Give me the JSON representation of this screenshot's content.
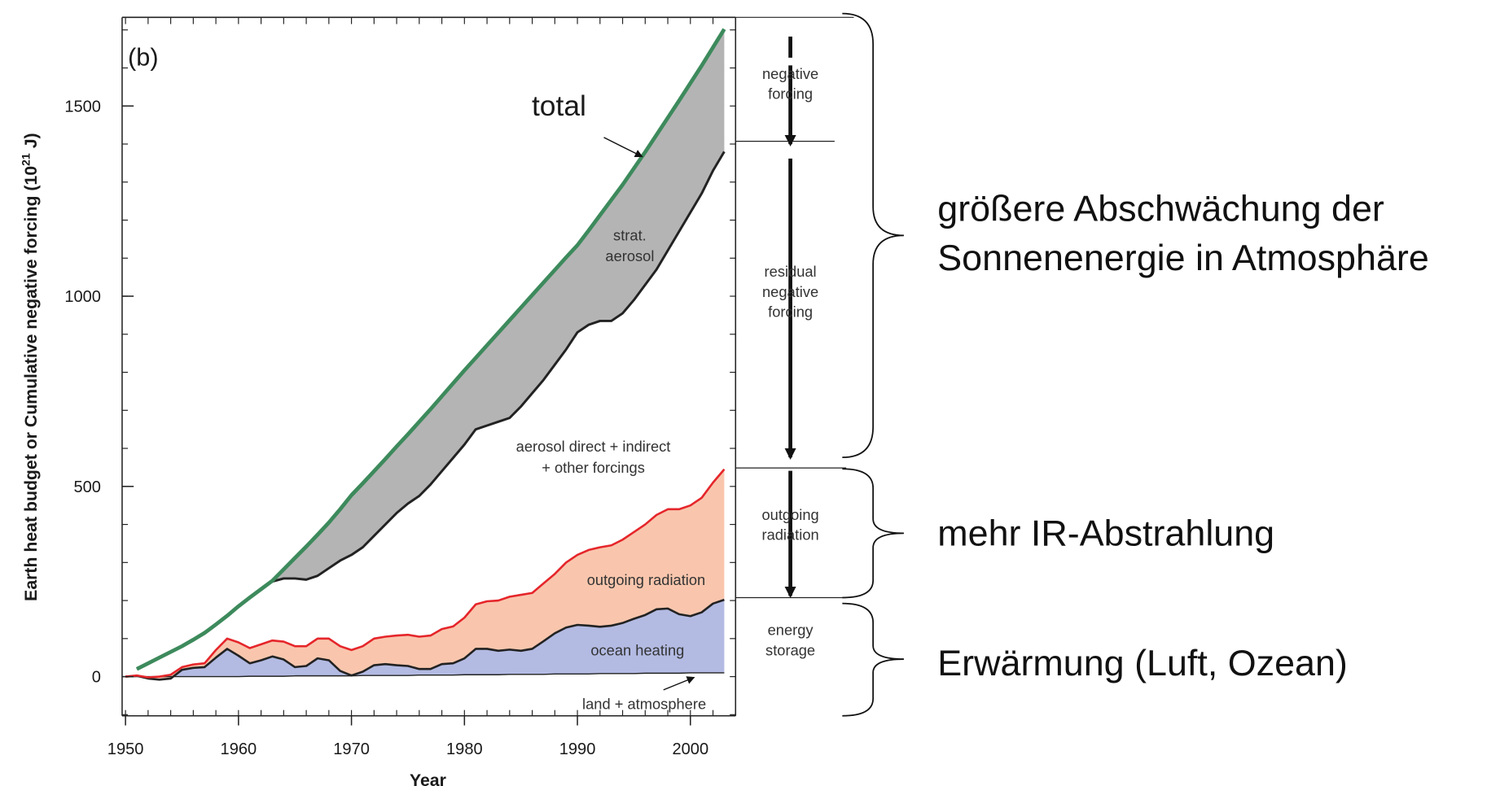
{
  "chart_data": {
    "type": "area",
    "panel_label": "(b)",
    "xlabel": "Year",
    "ylabel": [
      "Earth heat budget or Cumulative negative forcing (10",
      "21",
      " J)"
    ],
    "xlim": [
      1949.7,
      2004
    ],
    "xticks": [
      1950,
      1960,
      1970,
      1980,
      1990,
      2000
    ],
    "xminorticks": [
      1950,
      1952,
      1954,
      1956,
      1958,
      1960,
      1962,
      1964,
      1966,
      1968,
      1970,
      1972,
      1974,
      1976,
      1978,
      1980,
      1982,
      1984,
      1986,
      1988,
      1990,
      1992,
      1994,
      1996,
      1998,
      2000,
      2002,
      2004
    ],
    "ylim": [
      -103,
      1733
    ],
    "yticks": [
      0,
      500,
      1000,
      1500
    ],
    "yminorticks": [
      -100,
      0,
      100,
      200,
      300,
      400,
      500,
      600,
      700,
      800,
      900,
      1000,
      1100,
      1200,
      1300,
      1400,
      1500,
      1600,
      1700
    ],
    "x": [
      1950,
      1951,
      1952,
      1953,
      1954,
      1955,
      1956,
      1957,
      1958,
      1959,
      1960,
      1961,
      1962,
      1963,
      1964,
      1965,
      1966,
      1967,
      1968,
      1969,
      1970,
      1971,
      1972,
      1973,
      1974,
      1975,
      1976,
      1977,
      1978,
      1979,
      1980,
      1981,
      1982,
      1983,
      1984,
      1985,
      1986,
      1987,
      1988,
      1989,
      1990,
      1991,
      1992,
      1993,
      1994,
      1995,
      1996,
      1997,
      1998,
      1999,
      2000,
      2001,
      2002,
      2003
    ],
    "series": [
      {
        "name": "land + atmosphere",
        "color": "#222222",
        "width": 1.2,
        "area_color": null,
        "values": [
          0,
          0,
          0,
          0,
          0,
          0,
          0,
          0,
          0,
          0,
          0,
          1,
          1,
          1,
          1,
          2,
          2,
          2,
          2,
          2,
          2,
          3,
          3,
          3,
          3,
          3,
          4,
          4,
          4,
          4,
          5,
          5,
          5,
          5,
          6,
          6,
          6,
          6,
          7,
          7,
          7,
          7,
          8,
          8,
          8,
          8,
          9,
          9,
          9,
          9,
          10,
          10,
          10,
          10
        ]
      },
      {
        "name": "ocean heating",
        "color": "#222222",
        "width": 2.2,
        "area_color": "#b3bbe3",
        "values": [
          0,
          2,
          -5,
          -8,
          -5,
          18,
          23,
          25,
          50,
          73,
          55,
          35,
          43,
          53,
          45,
          25,
          28,
          48,
          43,
          15,
          3,
          13,
          30,
          33,
          30,
          28,
          20,
          20,
          33,
          35,
          48,
          73,
          73,
          68,
          71,
          68,
          73,
          93,
          114,
          129,
          136,
          134,
          131,
          134,
          141,
          152,
          162,
          177,
          179,
          164,
          159,
          169,
          192,
          202
        ]
      },
      {
        "name": "outgoing radiation",
        "color": "#e5262b",
        "width": 2.2,
        "area_color": "#f9c6ad",
        "values": [
          0,
          3,
          -2,
          0,
          5,
          25,
          32,
          35,
          70,
          100,
          90,
          75,
          85,
          95,
          92,
          80,
          80,
          100,
          100,
          80,
          70,
          80,
          100,
          105,
          108,
          110,
          105,
          108,
          125,
          132,
          155,
          190,
          198,
          200,
          210,
          215,
          220,
          245,
          270,
          300,
          320,
          333,
          340,
          345,
          360,
          380,
          400,
          425,
          440,
          440,
          450,
          470,
          510,
          545
        ]
      },
      {
        "name": "aerosol direct + indirect",
        "name2": "+ other forcings",
        "color": "#222222",
        "width": 2.5,
        "area_color": null,
        "values": [
          null,
          20,
          35,
          50,
          65,
          80,
          95,
          115,
          137,
          160,
          185,
          208,
          230,
          250,
          258,
          258,
          255,
          265,
          285,
          305,
          320,
          340,
          370,
          400,
          430,
          455,
          475,
          505,
          540,
          575,
          610,
          650,
          660,
          670,
          680,
          710,
          745,
          780,
          820,
          860,
          905,
          925,
          935,
          935,
          955,
          990,
          1030,
          1070,
          1120,
          1170,
          1220,
          1270,
          1330,
          1380
        ]
      },
      {
        "name": "total",
        "color": "#3d8a5c",
        "width": 4,
        "area_color": "#b4b4b4",
        "values": [
          null,
          20,
          35,
          50,
          65,
          80,
          97,
          115,
          137,
          160,
          185,
          208,
          230,
          252,
          282,
          312,
          342,
          373,
          405,
          440,
          477,
          508,
          540,
          572,
          605,
          637,
          670,
          703,
          737,
          771,
          805,
          838,
          871,
          904,
          937,
          970,
          1003,
          1036,
          1069,
          1102,
          1134,
          1173,
          1213,
          1253,
          1293,
          1336,
          1379,
          1424,
          1469,
          1514,
          1560,
          1606,
          1654,
          1702
        ]
      }
    ],
    "area_label": [
      "strat.",
      "aerosol"
    ],
    "panels": [
      {
        "lines": [
          "negative",
          "forcing"
        ]
      },
      {
        "lines": [
          "residual",
          "negative",
          "forcing"
        ]
      },
      {
        "lines": [
          "outgoing",
          "radiation"
        ]
      },
      {
        "lines": [
          "energy",
          "storage"
        ]
      }
    ],
    "braces": [
      {
        "lines": [
          "größere Abschwächung der",
          "Sonnenenergie in Atmosphäre"
        ]
      },
      {
        "lines": [
          "mehr IR-Abstrahlung"
        ]
      },
      {
        "lines": [
          "Erwärmung (Luft, Ozean)"
        ]
      }
    ]
  }
}
